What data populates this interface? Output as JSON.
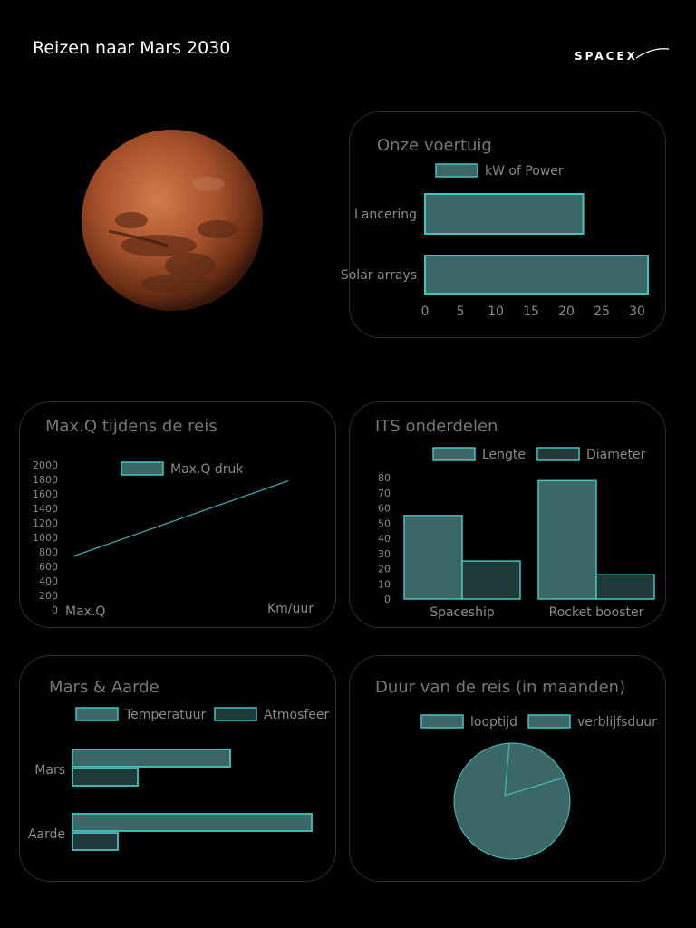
{
  "page": {
    "title": "Reizen naar Mars 2030",
    "logo": "SPACEX"
  },
  "colors": {
    "fill_light": "#3b6866",
    "fill_dark": "#1f3838",
    "stroke": "#44c4c0",
    "line": "#3fa5a6"
  },
  "chart_data": [
    {
      "id": "vehicles",
      "type": "bar",
      "orientation": "horizontal",
      "title": "Onze voertuig",
      "categories": [
        "Lancering",
        "Solar arrays"
      ],
      "series": [
        {
          "name": "kW of Power",
          "values": [
            22,
            31
          ]
        }
      ],
      "xticks": [
        "0",
        "5",
        "10",
        "15",
        "20",
        "25",
        "30"
      ],
      "xlim": [
        0,
        31
      ]
    },
    {
      "id": "maxq",
      "type": "line",
      "title": "Max.Q tijdens de reis",
      "xlabel": "Km/uur",
      "x_start_label": "Max.Q",
      "series": [
        {
          "name": "Max.Q druk",
          "values": [
            740,
            1780
          ]
        }
      ],
      "yticks": [
        "2000",
        "1800",
        "1600",
        "1400",
        "1200",
        "1000",
        "800",
        "600",
        "400",
        "200",
        "0"
      ],
      "ylim": [
        0,
        2000
      ]
    },
    {
      "id": "its",
      "type": "bar",
      "title": "ITS onderdelen",
      "categories": [
        "Spaceship",
        "Rocket booster"
      ],
      "series": [
        {
          "name": "Lengte",
          "values": [
            55,
            78
          ]
        },
        {
          "name": "Diameter",
          "values": [
            25,
            16
          ]
        }
      ],
      "yticks": [
        "80",
        "70",
        "60",
        "50",
        "40",
        "30",
        "20",
        "10",
        "0"
      ],
      "ylim": [
        0,
        80
      ]
    },
    {
      "id": "planets",
      "type": "bar",
      "orientation": "horizontal",
      "title": "Mars & Aarde",
      "categories": [
        "Mars",
        "Aarde"
      ],
      "series": [
        {
          "name": "Temperatuur",
          "values": [
            174,
            264
          ]
        },
        {
          "name": "Atmosfeer",
          "values": [
            72,
            50
          ]
        }
      ],
      "xlim": [
        0,
        264
      ]
    },
    {
      "id": "duration",
      "type": "pie",
      "title": "Duur van de reis (in maanden)",
      "series": [
        {
          "name": "looptijd",
          "value": 19
        },
        {
          "name": "verblijfsduur",
          "value": 81
        }
      ]
    }
  ]
}
